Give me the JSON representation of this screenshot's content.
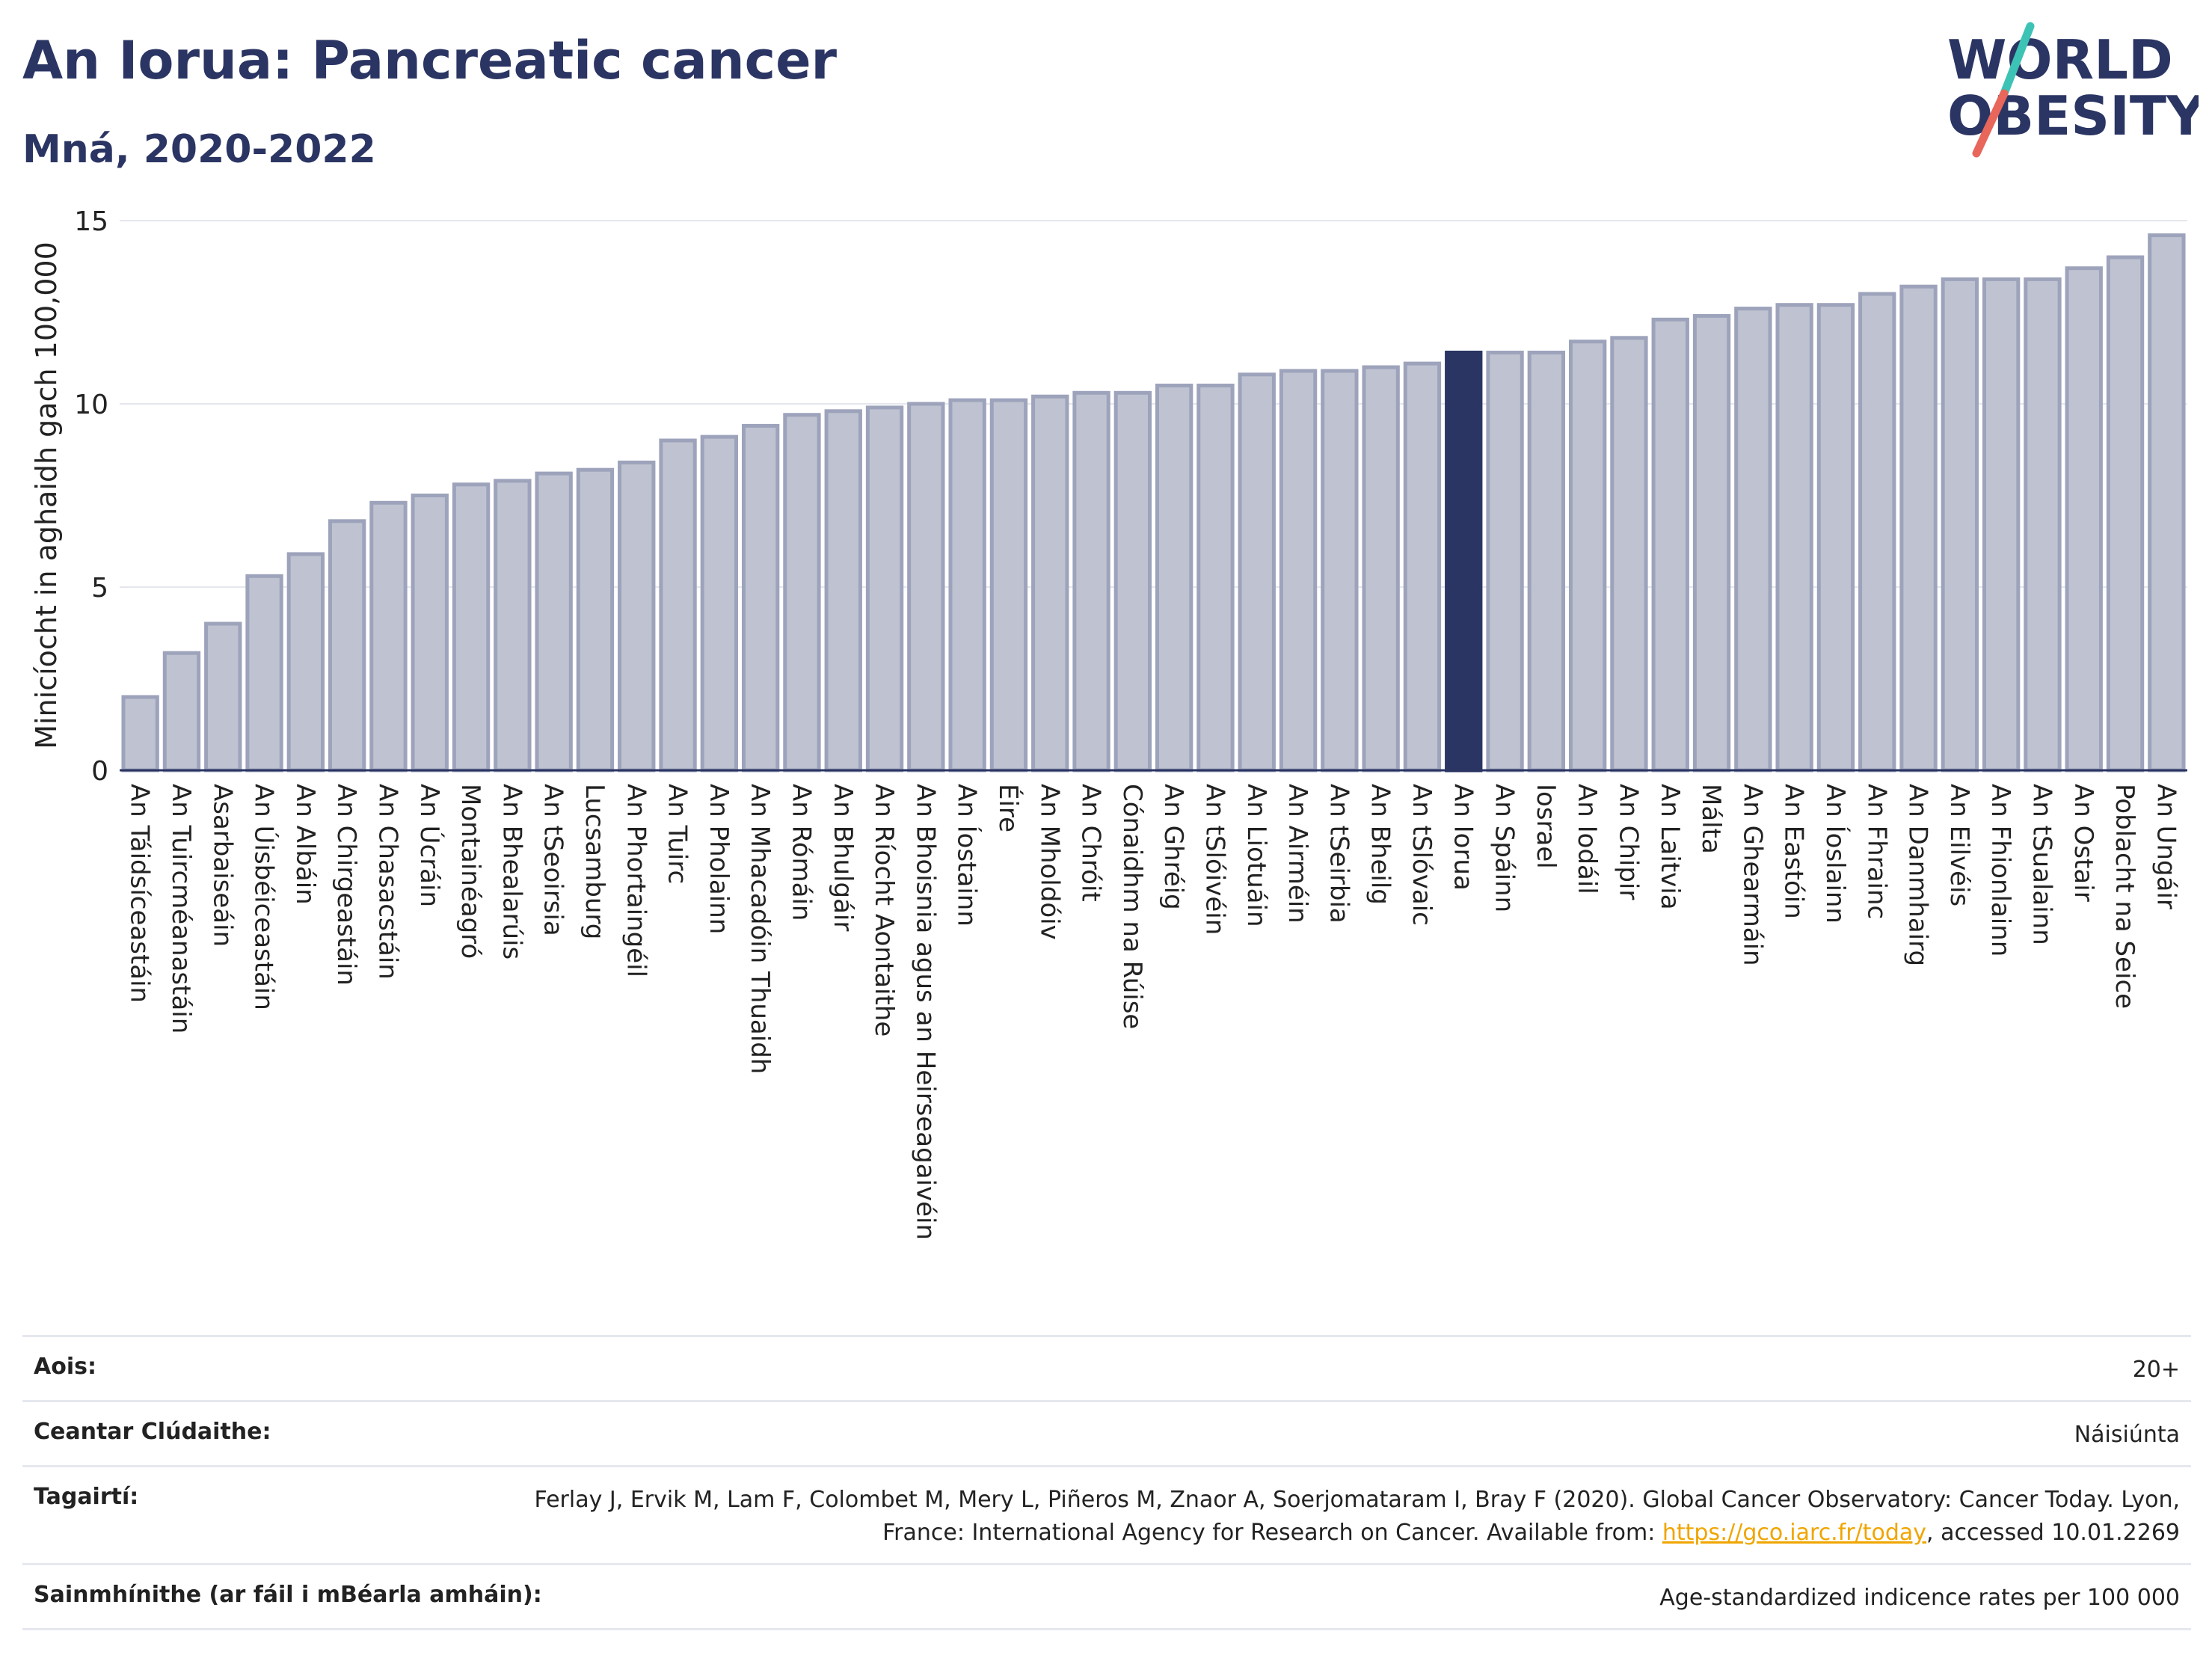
{
  "header": {
    "title": "An Iorua: Pancreatic cancer",
    "subtitle": "Mná, 2020-2022",
    "logo_line1": "WORLD",
    "logo_line2": "OBESITY"
  },
  "colors": {
    "bar": "#bfc3d1",
    "bar_stroke": "#9da3bb",
    "highlight": "#2b3563",
    "grid": "#e5e7ee",
    "axis": "#2b3563",
    "logo_teal": "#3cc3b5",
    "logo_red": "#e8665a"
  },
  "chart_data": {
    "type": "bar",
    "ylabel": "Minicíocht in aghaidh gach 100,000",
    "ylim": [
      0,
      15
    ],
    "yticks": [
      0,
      5,
      10,
      15
    ],
    "highlight": "An Iorua",
    "categories": [
      "An Táidsíceastáin",
      "An Tuircméanastáin",
      "Asarbaiseáin",
      "An Úisbéiceastáin",
      "An Albáin",
      "An Chirgeastáin",
      "An Chasacstáin",
      "An Úcráin",
      "Montainéagró",
      "An Bhealarúis",
      "An tSeoirsia",
      "Lucsamburg",
      "An Phortaingéil",
      "An Tuirc",
      "An Pholainn",
      "An Mhacadóin Thuaidh",
      "An Rómáin",
      "An Bhulgáir",
      "An Ríocht Aontaithe",
      "An Bhoisnia agus an Heirseagaivéin",
      "An Íostainn",
      "Éire",
      "An Mholdóiv",
      "An Chróit",
      "Cónaidhm na Rúise",
      "An Ghréig",
      "An tSlóivéin",
      "An Liotuáin",
      "An Airméin",
      "An tSeirbia",
      "An Bheilg",
      "An tSlóvaic",
      "An Iorua",
      "An Spáinn",
      "Iosrael",
      "An Iodáil",
      "An Chipir",
      "An Laitvia",
      "Málta",
      "An Ghearmáin",
      "An Eastóin",
      "An Íoslainn",
      "An Fhrainc",
      "An Danmhairg",
      "An Eilvéis",
      "An Fhionlainn",
      "An tSualainn",
      "An Ostair",
      "Poblacht na Seice",
      "An Ungáir"
    ],
    "values": [
      2.0,
      3.2,
      4.0,
      5.3,
      5.9,
      6.8,
      7.3,
      7.5,
      7.8,
      7.9,
      8.1,
      8.2,
      8.4,
      9.0,
      9.1,
      9.4,
      9.7,
      9.8,
      9.9,
      10.0,
      10.1,
      10.1,
      10.2,
      10.3,
      10.3,
      10.5,
      10.5,
      10.8,
      10.9,
      10.9,
      11.0,
      11.1,
      11.4,
      11.4,
      11.4,
      11.7,
      11.8,
      12.3,
      12.4,
      12.6,
      12.7,
      12.7,
      13.0,
      13.2,
      13.4,
      13.4,
      13.4,
      13.7,
      14.0,
      14.6
    ]
  },
  "footer": {
    "age_label": "Aois:",
    "age_value": "20+",
    "area_label": "Ceantar Clúdaithe:",
    "area_value": "Náisiúnta",
    "ref_label": "Tagairtí:",
    "ref_text_1": "Ferlay J, Ervik M, Lam F, Colombet M, Mery L, Piñeros M, Znaor A, Soerjomataram I, Bray F (2020). Global Cancer Observatory: Cancer Today. Lyon, France: International Agency for Research on Cancer. Available from: ",
    "ref_link": "https://gco.iarc.fr/today",
    "ref_text_2": ", accessed 10.01.2269",
    "def_label": "Sainmhínithe (ar fáil i mBéarla amháin):",
    "def_value": "Age-standardized indicence rates per 100 000"
  }
}
